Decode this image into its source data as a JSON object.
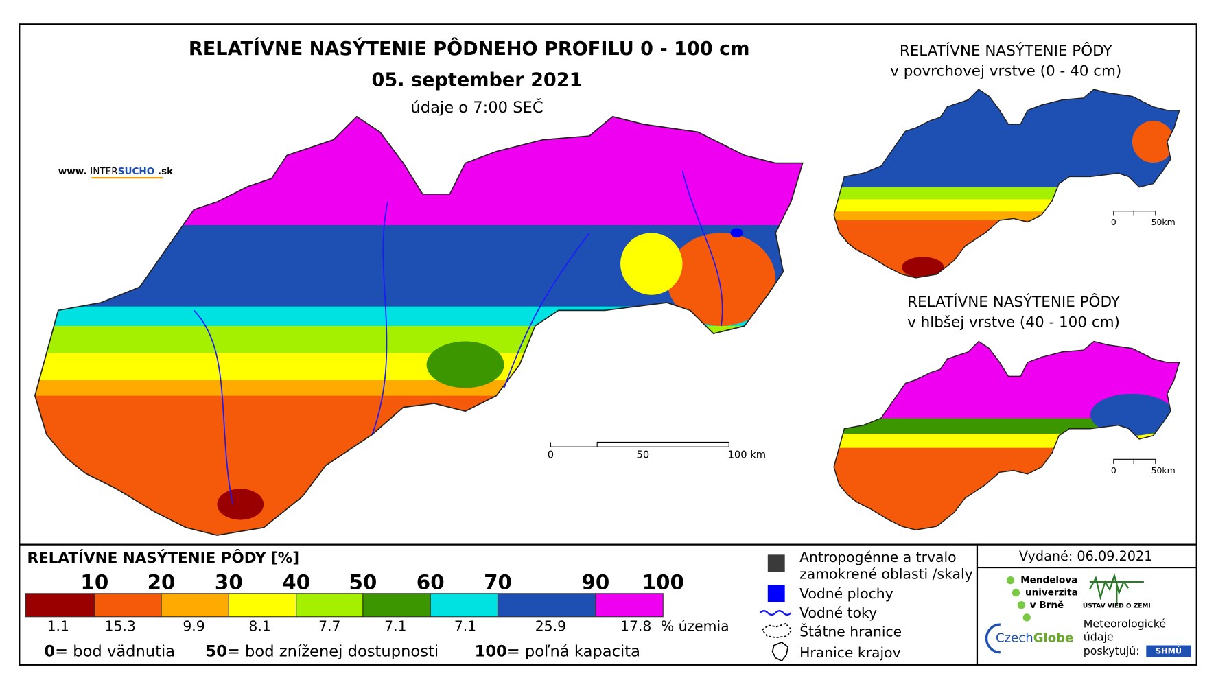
{
  "header": {
    "title": "RELATÍVNE NASÝTENIE PÔDNEHO PROFILU 0 - 100 cm",
    "date": "05. september 2021",
    "time": "údaje o 7:00 SEČ"
  },
  "website": {
    "prefix": "www.",
    "brand_a": "INTER",
    "brand_b": "SUCHO",
    "suffix": ".sk"
  },
  "main_scale": {
    "labels": [
      "0",
      "50",
      "100 km"
    ]
  },
  "insets": [
    {
      "title": "RELATÍVNE NASÝTENIE PÔDY",
      "subtitle": "v povrchovej vrstve (0 - 40 cm)",
      "scale": [
        "0",
        "50km"
      ]
    },
    {
      "title": "RELATÍVNE NASÝTENIE PÔDY",
      "subtitle": "v hlbšej vrstve (40 - 100 cm)",
      "scale": [
        "0",
        "50km"
      ]
    }
  ],
  "legend": {
    "title": "RELATÍVNE NASÝTENIE PÔDY [%]",
    "thresholds": [
      10,
      20,
      30,
      40,
      50,
      60,
      70,
      90,
      100
    ],
    "classes": [
      {
        "color": "#9b0000",
        "share": 1.1
      },
      {
        "color": "#f55a0a",
        "share": 15.3
      },
      {
        "color": "#ffaa00",
        "share": 9.9
      },
      {
        "color": "#ffff00",
        "share": 8.1
      },
      {
        "color": "#a5f000",
        "share": 7.7
      },
      {
        "color": "#3c9600",
        "share": 7.1
      },
      {
        "color": "#00e1e1",
        "share": 7.1
      },
      {
        "color": "#1e50b4",
        "share": 25.9
      },
      {
        "color": "#f000f0",
        "share": 17.8
      }
    ],
    "share_unit": "% územia",
    "notes": [
      {
        "value": 0,
        "text": "= bod vädnutia"
      },
      {
        "value": 50,
        "text": "= bod zníženej dostupnosti"
      },
      {
        "value": 100,
        "text": "= poľná kapacita"
      }
    ]
  },
  "symbols": {
    "anthropogenic": [
      "Antropogénne a trvalo",
      "zamokrené oblasti /skaly"
    ],
    "water_bodies": "Vodné plochy",
    "rivers": "Vodné toky",
    "state_border": "Štátne hranice",
    "regions": "Hranice krajov"
  },
  "issued": "Vydané: 06.09.2021",
  "credits": {
    "mendel": [
      "Mendelova",
      "univerzita",
      "v Brně"
    ],
    "ugv": "ÚSTAV VIED O ZEMI",
    "czechglobe_a": "Czech",
    "czechglobe_b": "Globe",
    "meteo": [
      "Meteorologické",
      "údaje",
      "poskytujú:"
    ],
    "shmu": "SHMÚ"
  }
}
